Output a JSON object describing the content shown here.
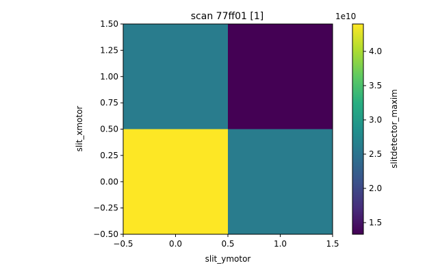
{
  "chart_data": {
    "type": "heatmap",
    "title": "scan 77ff01 [1]",
    "xlabel": "slit_ymotor",
    "ylabel": "slit_xmotor",
    "xlim": [
      -0.5,
      1.5
    ],
    "ylim": [
      -0.5,
      1.5
    ],
    "x_ticks": [
      -0.5,
      0.0,
      0.5,
      1.0,
      1.5
    ],
    "y_ticks": [
      -0.5,
      -0.25,
      0.0,
      0.25,
      0.5,
      0.75,
      1.0,
      1.25,
      1.5
    ],
    "x_tick_labels": [
      "−0.5",
      "0.0",
      "0.5",
      "1.0",
      "1.5"
    ],
    "y_tick_labels": [
      "−0.50",
      "−0.25",
      "0.00",
      "0.25",
      "0.50",
      "0.75",
      "1.00",
      "1.25",
      "1.50"
    ],
    "x_centers": [
      0,
      1
    ],
    "y_centers": [
      0,
      1
    ],
    "values": [
      [
        44000000000.0,
        26000000000.0
      ],
      [
        26000000000.0,
        13300000000.0
      ]
    ],
    "colormap": "viridis",
    "colorbar": {
      "label": "slitdetector_maxim",
      "offset_text": "1e10",
      "range": [
        13300000000.0,
        44000000000.0
      ],
      "ticks": [
        15000000000.0,
        20000000000.0,
        25000000000.0,
        30000000000.0,
        35000000000.0,
        40000000000.0
      ],
      "tick_labels": [
        "1.5",
        "2.0",
        "2.5",
        "3.0",
        "3.5",
        "4.0"
      ]
    },
    "grid": false
  }
}
